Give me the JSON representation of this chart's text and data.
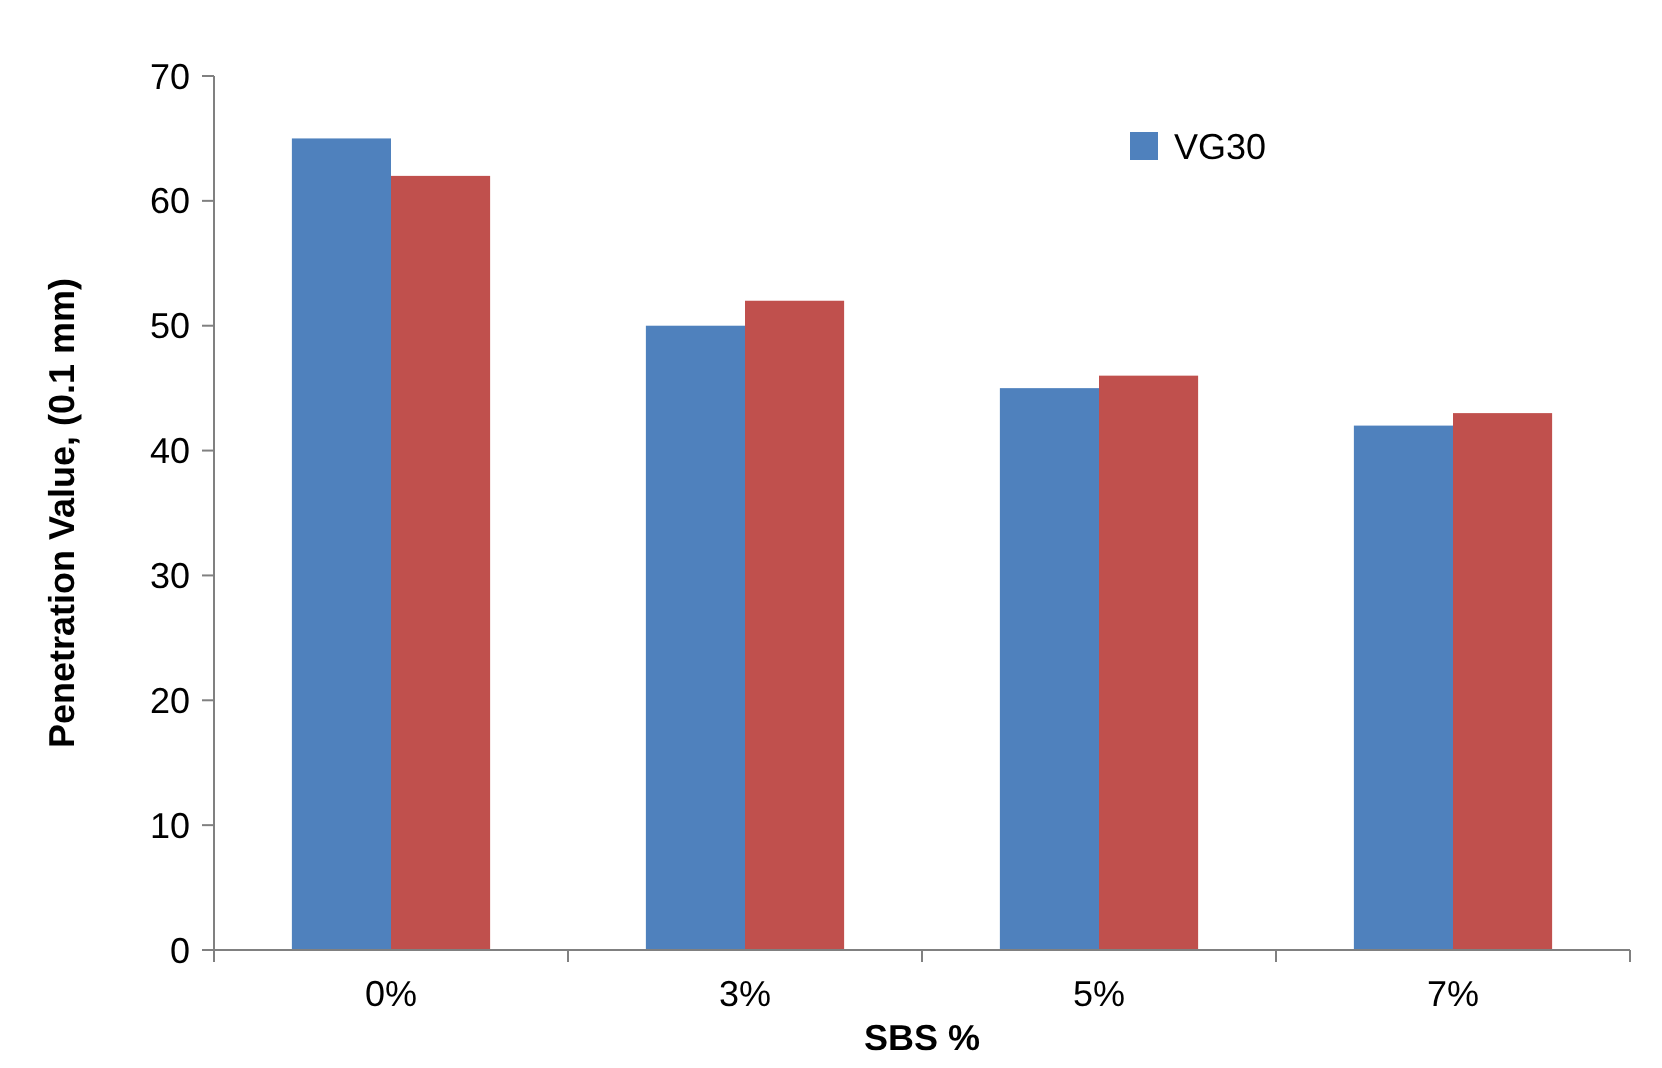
{
  "chart_data": {
    "type": "bar",
    "xlabel": "SBS %",
    "ylabel": "Penetration  Value, (0.1 mm)",
    "categories": [
      "0%",
      "3%",
      "5%",
      "7%"
    ],
    "series": [
      {
        "name": "VG30",
        "color": "#4f81bd",
        "values": [
          65,
          50,
          45,
          42
        ]
      },
      {
        "color": "#c0504d",
        "values": [
          62,
          52,
          46,
          43
        ]
      }
    ],
    "ylim": [
      0,
      70
    ],
    "yticks": [
      0,
      10,
      20,
      30,
      40,
      50,
      60,
      70
    ],
    "legend": "top right"
  }
}
